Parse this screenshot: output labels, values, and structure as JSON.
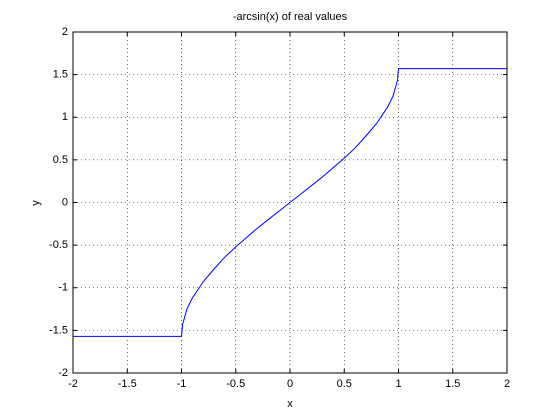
{
  "chart_data": {
    "type": "line",
    "title": "-arcsin(x) of real values",
    "x_label": "x",
    "y_label": "y",
    "x": [
      -2,
      -1,
      -0.99,
      -0.95,
      -0.9,
      -0.8,
      -0.7,
      -0.6,
      -0.5,
      -0.4,
      -0.3,
      -0.2,
      -0.1,
      0,
      0.1,
      0.2,
      0.3,
      0.4,
      0.5,
      0.6,
      0.7,
      0.8,
      0.9,
      0.95,
      0.99,
      1,
      2
    ],
    "series": [
      {
        "color": "#0000ff",
        "values": [
          -1.57,
          -1.57,
          -1.43,
          -1.25,
          -1.12,
          -0.93,
          -0.78,
          -0.64,
          -0.52,
          -0.41,
          -0.3,
          -0.2,
          -0.1,
          0,
          0.1,
          0.2,
          0.3,
          0.41,
          0.52,
          0.64,
          0.78,
          0.93,
          1.12,
          1.25,
          1.43,
          1.57,
          1.57
        ]
      }
    ],
    "xlim": [
      -2,
      2
    ],
    "ylim": [
      -2,
      2
    ],
    "xticks": [
      -2,
      -1.5,
      -1,
      -0.5,
      0,
      0.5,
      1,
      1.5,
      2
    ],
    "yticks": [
      -2,
      -1.5,
      -1,
      -0.5,
      0,
      0.5,
      1,
      1.5,
      2
    ],
    "grid": true
  }
}
